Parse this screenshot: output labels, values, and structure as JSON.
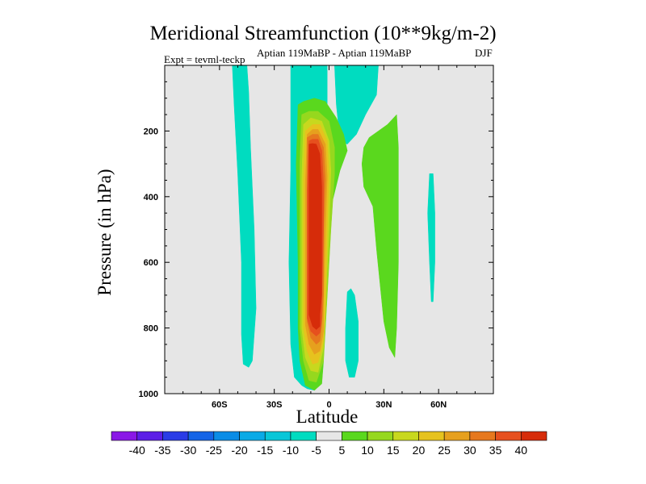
{
  "chart_data": {
    "type": "heatmap",
    "title": "Meridional Streamfunction (10**9kg/m-2)",
    "subtitle_center": "Aptian   119MaBP - Aptian   119MaBP",
    "subtitle_right": "DJF",
    "subtitle_left": "Expt = tevml-teckp",
    "xlabel": "Latitude",
    "ylabel": "Pressure (in hPa)",
    "xlim": [
      -90,
      90
    ],
    "ylim": [
      1000,
      0
    ],
    "x_ticks": [
      -60,
      -30,
      0,
      30,
      60
    ],
    "x_tick_labels": [
      "60S",
      "30S",
      "0",
      "30N",
      "60N"
    ],
    "y_ticks": [
      200,
      400,
      600,
      800,
      1000
    ],
    "y_tick_labels": [
      "200",
      "400",
      "600",
      "800",
      "1000"
    ],
    "colorbar": {
      "levels": [
        -40,
        -35,
        -30,
        -25,
        -20,
        -15,
        -10,
        -5,
        5,
        10,
        15,
        20,
        25,
        30,
        35,
        40
      ],
      "labels": [
        "-40",
        "-35",
        "-30",
        "-25",
        "-20",
        "-15",
        "-10",
        "-5",
        "5",
        "10",
        "15",
        "20",
        "25",
        "30",
        "35",
        "40"
      ],
      "colors": [
        "#8a18e6",
        "#5c1ee6",
        "#2a3ce6",
        "#1464e6",
        "#0a8ce6",
        "#0aaae6",
        "#08c6d8",
        "#00dcc0",
        "#e6e6e6",
        "#5ad81e",
        "#96d81e",
        "#c8d81e",
        "#e6c21e",
        "#e6a01e",
        "#e6781e",
        "#e6501e",
        "#d62c0a"
      ]
    },
    "background_color": "#e6e6e6",
    "contours": [
      {
        "level": "-10 to -5",
        "color": "#00dcc0",
        "points": [
          [
            -53,
            0
          ],
          [
            -52,
            120
          ],
          [
            -50,
            330
          ],
          [
            -48,
            600
          ],
          [
            -48,
            820
          ],
          [
            -47,
            910
          ],
          [
            -44,
            920
          ],
          [
            -42,
            900
          ],
          [
            -40,
            740
          ],
          [
            -41,
            500
          ],
          [
            -43,
            250
          ],
          [
            -44,
            80
          ],
          [
            -45,
            0
          ]
        ]
      },
      {
        "level": "-10 to -5",
        "color": "#00dcc0",
        "points": [
          [
            -21,
            0
          ],
          [
            -21,
            140
          ],
          [
            -21,
            320
          ],
          [
            -22,
            600
          ],
          [
            -21,
            850
          ],
          [
            -19,
            950
          ],
          [
            -15,
            975
          ],
          [
            -12,
            985
          ],
          [
            -8,
            990
          ],
          [
            -9,
            960
          ],
          [
            -14,
            900
          ],
          [
            -17,
            720
          ],
          [
            -17,
            400
          ],
          [
            -17,
            200
          ],
          [
            -16,
            120
          ],
          [
            -12,
            110
          ],
          [
            -5,
            120
          ],
          [
            -1,
            150
          ],
          [
            -1,
            0
          ]
        ]
      },
      {
        "level": "-10 to -5",
        "color": "#00dcc0",
        "points": [
          [
            3,
            0
          ],
          [
            4,
            120
          ],
          [
            6,
            230
          ],
          [
            10,
            240
          ],
          [
            15,
            210
          ],
          [
            20,
            150
          ],
          [
            26,
            90
          ],
          [
            27,
            0
          ]
        ]
      },
      {
        "level": "-10 to -5",
        "color": "#00dcc0",
        "points": [
          [
            10,
            690
          ],
          [
            9,
            800
          ],
          [
            9,
            900
          ],
          [
            11,
            950
          ],
          [
            14,
            950
          ],
          [
            16,
            900
          ],
          [
            16,
            780
          ],
          [
            14,
            700
          ],
          [
            12,
            680
          ]
        ]
      },
      {
        "level": "-10 to -5",
        "color": "#00dcc0",
        "points": [
          [
            55,
            330
          ],
          [
            54,
            450
          ],
          [
            55,
            600
          ],
          [
            56,
            720
          ],
          [
            57,
            720
          ],
          [
            58,
            600
          ],
          [
            58,
            450
          ],
          [
            57,
            330
          ]
        ]
      },
      {
        "level": "5 to 10",
        "color": "#5ad81e",
        "points": [
          [
            -17,
            120
          ],
          [
            -18,
            300
          ],
          [
            -17,
            600
          ],
          [
            -17,
            800
          ],
          [
            -16,
            900
          ],
          [
            -13,
            975
          ],
          [
            -8,
            990
          ],
          [
            -4,
            970
          ],
          [
            -3,
            900
          ],
          [
            -3,
            800
          ],
          [
            -2,
            500
          ],
          [
            6,
            320
          ],
          [
            10,
            260
          ],
          [
            8,
            210
          ],
          [
            4,
            160
          ],
          [
            -2,
            110
          ],
          [
            -8,
            100
          ],
          [
            -14,
            110
          ]
        ]
      },
      {
        "level": "5 to 10",
        "color": "#5ad81e",
        "points": [
          [
            19,
            250
          ],
          [
            18,
            300
          ],
          [
            19,
            370
          ],
          [
            24,
            430
          ],
          [
            26,
            560
          ],
          [
            30,
            780
          ],
          [
            33,
            860
          ],
          [
            36,
            890
          ],
          [
            37,
            800
          ],
          [
            38,
            600
          ],
          [
            38,
            400
          ],
          [
            38,
            250
          ],
          [
            37,
            150
          ],
          [
            32,
            180
          ],
          [
            27,
            200
          ],
          [
            22,
            220
          ]
        ]
      },
      {
        "level": "10 to 15",
        "color": "#96d81e",
        "points": [
          [
            -15,
            150
          ],
          [
            -16,
            300
          ],
          [
            -16,
            600
          ],
          [
            -16,
            800
          ],
          [
            -14,
            900
          ],
          [
            -11,
            960
          ],
          [
            -7,
            965
          ],
          [
            -3,
            900
          ],
          [
            -2,
            800
          ],
          [
            1,
            500
          ],
          [
            3,
            330
          ],
          [
            3,
            250
          ],
          [
            0,
            170
          ],
          [
            -6,
            140
          ],
          [
            -11,
            140
          ]
        ]
      },
      {
        "level": "15 to 20",
        "color": "#c8d81e",
        "points": [
          [
            -14,
            180
          ],
          [
            -15,
            350
          ],
          [
            -15,
            600
          ],
          [
            -15,
            800
          ],
          [
            -13,
            890
          ],
          [
            -10,
            930
          ],
          [
            -6,
            935
          ],
          [
            -3,
            860
          ],
          [
            -2,
            750
          ],
          [
            0,
            500
          ],
          [
            1,
            320
          ],
          [
            0,
            230
          ],
          [
            -4,
            170
          ],
          [
            -10,
            160
          ]
        ]
      },
      {
        "level": "20 to 25",
        "color": "#e6c21e",
        "points": [
          [
            -13,
            200
          ],
          [
            -14,
            350
          ],
          [
            -14,
            600
          ],
          [
            -14,
            800
          ],
          [
            -12,
            870
          ],
          [
            -9,
            910
          ],
          [
            -6,
            905
          ],
          [
            -3,
            840
          ],
          [
            -2,
            740
          ],
          [
            -1,
            500
          ],
          [
            0,
            330
          ],
          [
            -1,
            230
          ],
          [
            -5,
            180
          ],
          [
            -9,
            180
          ]
        ]
      },
      {
        "level": "25 to 30",
        "color": "#e6a01e",
        "points": [
          [
            -12,
            210
          ],
          [
            -13,
            360
          ],
          [
            -13,
            600
          ],
          [
            -13,
            790
          ],
          [
            -11,
            850
          ],
          [
            -8,
            880
          ],
          [
            -5,
            870
          ],
          [
            -3,
            810
          ],
          [
            -3,
            720
          ],
          [
            -2,
            500
          ],
          [
            -1,
            340
          ],
          [
            -2,
            240
          ],
          [
            -6,
            195
          ],
          [
            -9,
            195
          ]
        ]
      },
      {
        "level": "30 to 35",
        "color": "#e6781e",
        "points": [
          [
            -12,
            220
          ],
          [
            -12,
            370
          ],
          [
            -12,
            600
          ],
          [
            -12,
            780
          ],
          [
            -10,
            830
          ],
          [
            -7,
            850
          ],
          [
            -5,
            840
          ],
          [
            -4,
            790
          ],
          [
            -3,
            700
          ],
          [
            -3,
            500
          ],
          [
            -2,
            350
          ],
          [
            -3,
            250
          ],
          [
            -6,
            210
          ],
          [
            -9,
            210
          ]
        ]
      },
      {
        "level": "35 to 40",
        "color": "#e6501e",
        "points": [
          [
            -11,
            230
          ],
          [
            -12,
            380
          ],
          [
            -12,
            600
          ],
          [
            -12,
            770
          ],
          [
            -10,
            810
          ],
          [
            -7,
            825
          ],
          [
            -5,
            815
          ],
          [
            -4,
            770
          ],
          [
            -4,
            700
          ],
          [
            -3,
            500
          ],
          [
            -3,
            360
          ],
          [
            -4,
            260
          ],
          [
            -6,
            225
          ],
          [
            -9,
            225
          ]
        ]
      },
      {
        "level": ">40",
        "color": "#d62c0a",
        "points": [
          [
            -11,
            240
          ],
          [
            -11,
            390
          ],
          [
            -11,
            600
          ],
          [
            -11,
            760
          ],
          [
            -9,
            795
          ],
          [
            -7,
            805
          ],
          [
            -5,
            795
          ],
          [
            -5,
            760
          ],
          [
            -4,
            700
          ],
          [
            -4,
            500
          ],
          [
            -4,
            370
          ],
          [
            -5,
            270
          ],
          [
            -7,
            240
          ],
          [
            -9,
            238
          ]
        ]
      }
    ]
  }
}
